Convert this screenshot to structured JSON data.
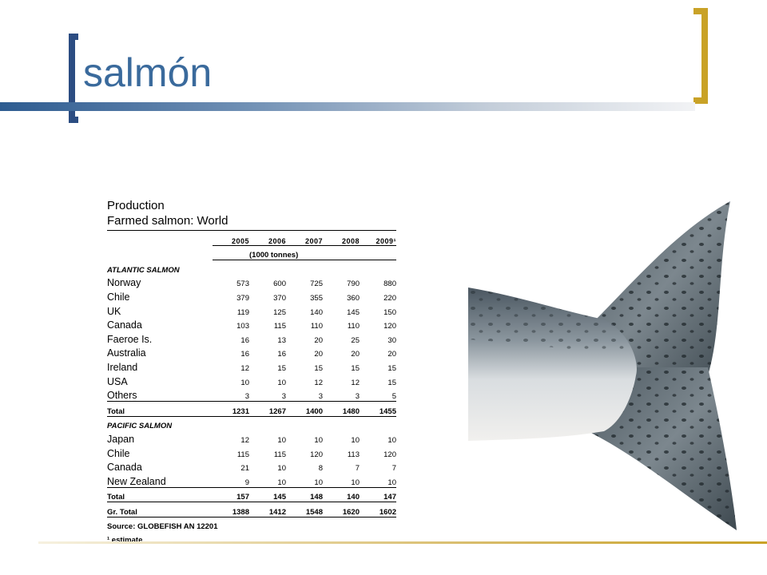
{
  "slide": {
    "title": "salmón"
  },
  "table": {
    "title_line1": "Production",
    "title_line2": "Farmed salmon:  World",
    "years": [
      "2005",
      "2006",
      "2007",
      "2008",
      "2009¹"
    ],
    "unit": "(1000 tonnes)",
    "atlantic": {
      "label": "ATLANTIC SALMON",
      "rows": [
        {
          "name": "Norway",
          "values": [
            "573",
            "600",
            "725",
            "790",
            "880"
          ]
        },
        {
          "name": "Chile",
          "values": [
            "379",
            "370",
            "355",
            "360",
            "220"
          ]
        },
        {
          "name": "UK",
          "values": [
            "119",
            "125",
            "140",
            "145",
            "150"
          ]
        },
        {
          "name": "Canada",
          "values": [
            "103",
            "115",
            "110",
            "110",
            "120"
          ]
        },
        {
          "name": "Faeroe Is.",
          "values": [
            "16",
            "13",
            "20",
            "25",
            "30"
          ]
        },
        {
          "name": "Australia",
          "values": [
            "16",
            "16",
            "20",
            "20",
            "20"
          ]
        },
        {
          "name": "Ireland",
          "values": [
            "12",
            "15",
            "15",
            "15",
            "15"
          ]
        },
        {
          "name": "USA",
          "values": [
            "10",
            "10",
            "12",
            "12",
            "15"
          ]
        },
        {
          "name": "Others",
          "values": [
            "3",
            "3",
            "3",
            "3",
            "5"
          ]
        }
      ],
      "total": {
        "name": "Total",
        "values": [
          "1231",
          "1267",
          "1400",
          "1480",
          "1455"
        ]
      }
    },
    "pacific": {
      "label": "PACIFIC SALMON",
      "rows": [
        {
          "name": "Japan",
          "values": [
            "12",
            "10",
            "10",
            "10",
            "10"
          ]
        },
        {
          "name": "Chile",
          "values": [
            "115",
            "115",
            "120",
            "113",
            "120"
          ]
        },
        {
          "name": "Canada",
          "values": [
            "21",
            "10",
            "8",
            "7",
            "7"
          ]
        },
        {
          "name": "New Zealand",
          "values": [
            "9",
            "10",
            "10",
            "10",
            "10"
          ]
        }
      ],
      "total": {
        "name": "Total",
        "values": [
          "157",
          "145",
          "148",
          "140",
          "147"
        ]
      }
    },
    "grand_total": {
      "name": "Gr. Total",
      "values": [
        "1388",
        "1412",
        "1548",
        "1620",
        "1602"
      ]
    },
    "source": "Source: GLOBEFISH AN 12201",
    "note": "¹ estimate"
  },
  "colors": {
    "title": "#3a6a9c",
    "bracket_left": "#2c4d82",
    "bracket_right": "#c9a227"
  },
  "image": {
    "icon": "salmon-tail-photo"
  }
}
